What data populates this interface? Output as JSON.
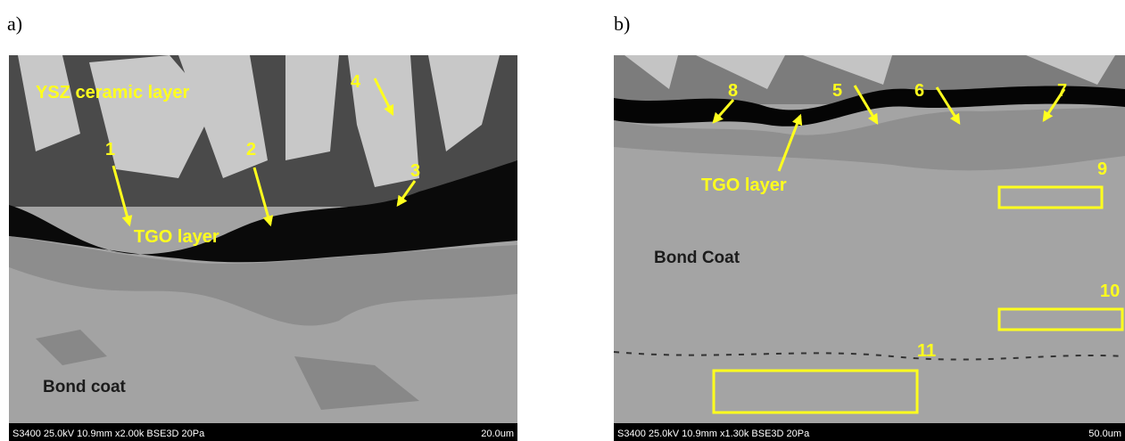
{
  "panels": [
    {
      "label": "a)",
      "annotations": [
        "YSZ ceramic layer",
        "1",
        "2",
        "3",
        "4",
        "TGO layer",
        "Bond coat"
      ],
      "info": "S3400 25.0kV 10.9mm x2.00k BSE3D 20Pa",
      "scale": "20.0um"
    },
    {
      "label": "b)",
      "annotations": [
        "8",
        "5",
        "6",
        "7",
        "TGO layer",
        "9",
        "Bond Coat",
        "10",
        "11"
      ],
      "info": "S3400 25.0kV 10.9mm x1.30k BSE3D 20Pa",
      "scale": "50.0um"
    }
  ]
}
